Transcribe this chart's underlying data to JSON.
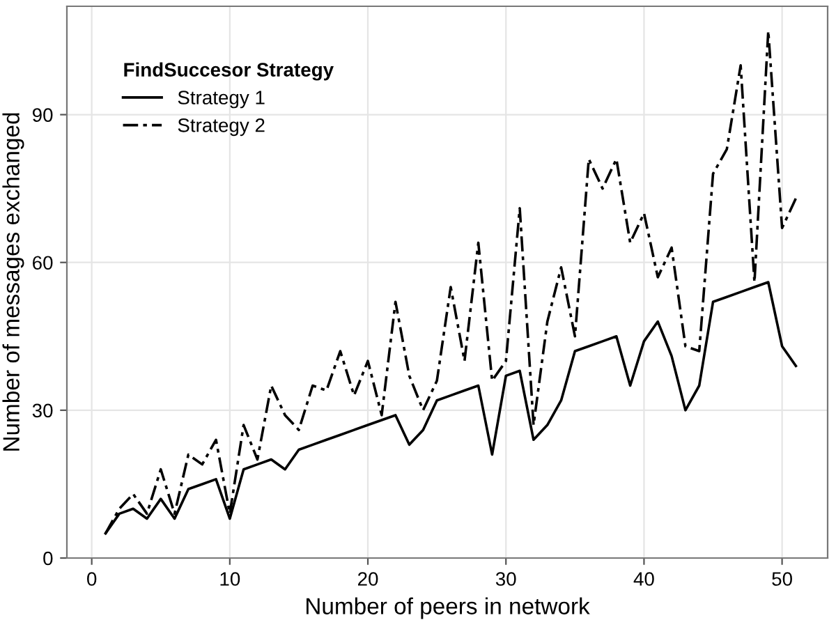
{
  "chart_data": {
    "type": "line",
    "xlabel": "Number of peers in network",
    "ylabel": "Number of messages exchanged",
    "legend_title": "FindSuccesor Strategy",
    "x": [
      1,
      2,
      3,
      4,
      5,
      6,
      7,
      8,
      9,
      10,
      11,
      12,
      13,
      14,
      15,
      16,
      17,
      18,
      19,
      20,
      21,
      22,
      23,
      24,
      25,
      26,
      27,
      28,
      29,
      30,
      31,
      32,
      33,
      34,
      35,
      36,
      37,
      38,
      39,
      40,
      41,
      42,
      43,
      44,
      45,
      46,
      47,
      48,
      49,
      50,
      51
    ],
    "series": [
      {
        "name": "Strategy 1",
        "color": "#000000",
        "line_style": "solid",
        "values": [
          5,
          9,
          10,
          8,
          12,
          8,
          14,
          15,
          16,
          8,
          18,
          19,
          20,
          18,
          22,
          23,
          24,
          25,
          26,
          27,
          28,
          29,
          23,
          26,
          32,
          33,
          34,
          35,
          21,
          37,
          38,
          24,
          27,
          32,
          42,
          43,
          44,
          45,
          35,
          44,
          48,
          41,
          30,
          35,
          52,
          53,
          54,
          55,
          56,
          43,
          39
        ]
      },
      {
        "name": "Strategy 2",
        "color": "#000000",
        "line_style": "dashdot",
        "values": [
          5,
          10,
          13,
          9,
          18,
          9,
          21,
          19,
          24,
          9,
          27,
          20,
          35,
          29,
          26,
          35,
          34,
          42,
          33,
          40,
          29,
          52,
          37,
          30,
          36,
          55,
          40,
          64,
          36,
          40,
          71,
          27,
          48,
          59,
          45,
          81,
          75,
          81,
          64,
          70,
          57,
          63,
          43,
          42,
          78,
          83,
          100,
          56,
          107,
          67,
          73
        ]
      }
    ],
    "xlim": [
      -1.8,
      53.3
    ],
    "ylim": [
      0,
      112
    ],
    "xticks": [
      0,
      10,
      20,
      30,
      40,
      50
    ],
    "yticks": [
      0,
      30,
      60,
      90
    ],
    "grid": true,
    "legend": "top left"
  }
}
